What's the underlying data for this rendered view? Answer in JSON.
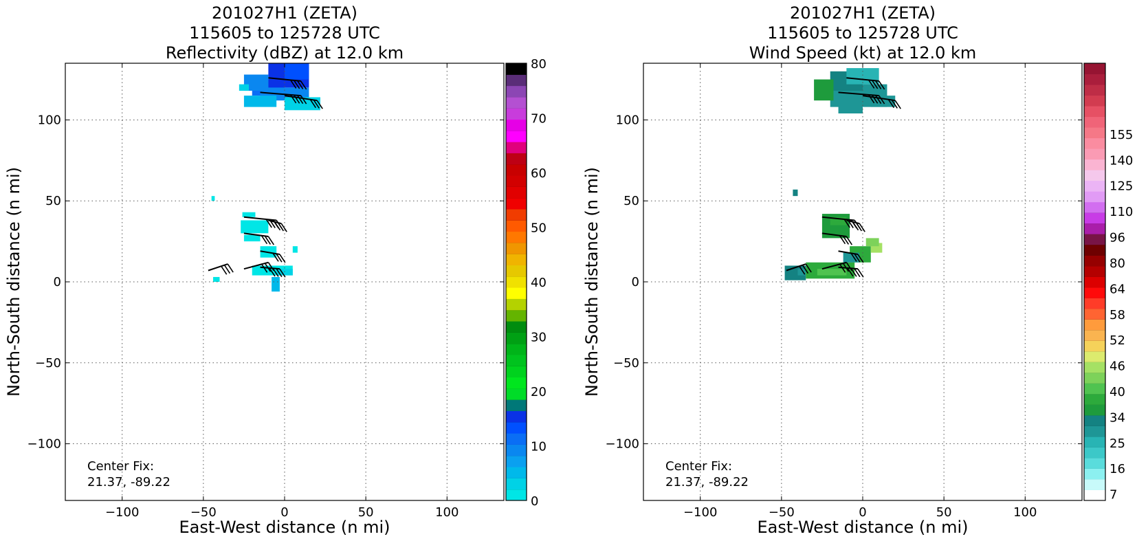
{
  "chart_data": [
    {
      "type": "heatmap",
      "title_lines": [
        "201027H1 (ZETA)",
        "115605 to 125728 UTC",
        "Reflectivity (dBZ) at 12.0 km"
      ],
      "xlabel": "East-West distance (n mi)",
      "ylabel": "North-South distance (n mi)",
      "xlim": [
        -135,
        135
      ],
      "ylim": [
        -135,
        135
      ],
      "xticks": [
        -100,
        -50,
        0,
        50,
        100
      ],
      "yticks": [
        -100,
        -50,
        0,
        50,
        100
      ],
      "xticklabels": [
        "−100",
        "−50",
        "0",
        "50",
        "100"
      ],
      "yticklabels": [
        "−100",
        "−50",
        "0",
        "50",
        "100"
      ],
      "grid": true,
      "annotation_lines": [
        "Center Fix:",
        "21.37, -89.22"
      ],
      "colorbar": {
        "levels": 32,
        "ticks": [
          {
            "label": "0",
            "level": 0
          },
          {
            "label": "10",
            "level": 4
          },
          {
            "label": "20",
            "level": 8
          },
          {
            "label": "30",
            "level": 12
          },
          {
            "label": "40",
            "level": 16
          },
          {
            "label": "50",
            "level": 20
          },
          {
            "label": "60",
            "level": 24
          },
          {
            "label": "70",
            "level": 28
          },
          {
            "label": "80",
            "level": 32
          }
        ],
        "colors": [
          "#00e6e6",
          "#00d2e6",
          "#00b9ea",
          "#0aa0f0",
          "#0a87f0",
          "#0a6ef5",
          "#0050ff",
          "#0a32e6",
          "#007878",
          "#00dc28",
          "#00e61e",
          "#00d21e",
          "#00c31e",
          "#00b419",
          "#00a014",
          "#008c0f",
          "#64b400",
          "#b4d200",
          "#ffff00",
          "#f0e100",
          "#e6c800",
          "#f0b400",
          "#f09600",
          "#ff7800",
          "#ff5a00",
          "#f03c00",
          "#f00000",
          "#e10000",
          "#d20000",
          "#c80000",
          "#be0014",
          "#e1007d",
          "#ff00ff",
          "#e600e6",
          "#c83cdc",
          "#b450d2",
          "#8c46b4",
          "#5a2d78",
          "#000000"
        ]
      },
      "cells": [
        {
          "x": [
            -20,
            0
          ],
          "y": [
            115,
            125
          ],
          "color": "#0a6ef5"
        },
        {
          "x": [
            -15,
            15
          ],
          "y": [
            112,
            120
          ],
          "color": "#0a87f0"
        },
        {
          "x": [
            -10,
            15
          ],
          "y": [
            120,
            135
          ],
          "color": "#0a32e6"
        },
        {
          "x": [
            0,
            15
          ],
          "y": [
            125,
            135
          ],
          "color": "#0050ff"
        },
        {
          "x": [
            -25,
            -10
          ],
          "y": [
            118,
            128
          ],
          "color": "#0a87f0"
        },
        {
          "x": [
            0,
            22
          ],
          "y": [
            106,
            114
          ],
          "color": "#00d2e6"
        },
        {
          "x": [
            -25,
            -5
          ],
          "y": [
            108,
            115
          ],
          "color": "#00b9ea"
        },
        {
          "x": [
            -28,
            -22
          ],
          "y": [
            118,
            122
          ],
          "color": "#00d2e6"
        },
        {
          "x": [
            -27,
            -10
          ],
          "y": [
            30,
            38
          ],
          "color": "#00e6e6"
        },
        {
          "x": [
            -25,
            -15
          ],
          "y": [
            25,
            29
          ],
          "color": "#00e6e6"
        },
        {
          "x": [
            -15,
            -5
          ],
          "y": [
            15,
            22
          ],
          "color": "#00e6e6"
        },
        {
          "x": [
            -20,
            5
          ],
          "y": [
            4,
            10
          ],
          "color": "#00e6e6"
        },
        {
          "x": [
            -5,
            5
          ],
          "y": [
            4,
            8
          ],
          "color": "#00d2e6"
        },
        {
          "x": [
            -8,
            -3
          ],
          "y": [
            -6,
            3
          ],
          "color": "#00b9ea"
        },
        {
          "x": [
            -44,
            -40
          ],
          "y": [
            0,
            3
          ],
          "color": "#00e6e6"
        },
        {
          "x": [
            -45,
            -43
          ],
          "y": [
            50,
            53
          ],
          "color": "#00e6e6"
        },
        {
          "x": [
            5,
            8
          ],
          "y": [
            18,
            22
          ],
          "color": "#00e6e6"
        },
        {
          "x": [
            -26,
            -18
          ],
          "y": [
            40,
            43
          ],
          "color": "#00e6e6"
        }
      ],
      "barbs": [
        {
          "x": [
            -25,
            -5
          ],
          "y": [
            40,
            38
          ],
          "flags": 4
        },
        {
          "x": [
            -10,
            -2
          ],
          "y": [
            38,
            36
          ],
          "flags": 3
        },
        {
          "x": [
            -25,
            -10
          ],
          "y": [
            30,
            28
          ],
          "flags": 3
        },
        {
          "x": [
            -15,
            -3
          ],
          "y": [
            19,
            17
          ],
          "flags": 3
        },
        {
          "x": [
            -47,
            -35
          ],
          "y": [
            7,
            11
          ],
          "flags": 3
        },
        {
          "x": [
            -25,
            -10
          ],
          "y": [
            8,
            12
          ],
          "flags": 3
        },
        {
          "x": [
            -15,
            -3
          ],
          "y": [
            9,
            8
          ],
          "flags": 4
        },
        {
          "x": [
            -10,
            10
          ],
          "y": [
            126,
            124
          ],
          "flags": 4
        },
        {
          "x": [
            -15,
            10
          ],
          "y": [
            117,
            115
          ],
          "flags": 4
        },
        {
          "x": [
            0,
            20
          ],
          "y": [
            115,
            112
          ],
          "flags": 3
        }
      ]
    },
    {
      "type": "heatmap",
      "title_lines": [
        "201027H1 (ZETA)",
        "115605 to 125728 UTC",
        "Wind Speed (kt) at 12.0 km"
      ],
      "xlabel": "East-West distance (n mi)",
      "ylabel": "North-South distance (n mi)",
      "xlim": [
        -135,
        135
      ],
      "ylim": [
        -135,
        135
      ],
      "xticks": [
        -100,
        -50,
        0,
        50,
        100
      ],
      "yticks": [
        -100,
        -50,
        0,
        50,
        100
      ],
      "xticklabels": [
        "−100",
        "−50",
        "0",
        "50",
        "100"
      ],
      "yticklabels": [
        "−100",
        "−50",
        "0",
        "50",
        "100"
      ],
      "grid": true,
      "annotation_lines": [
        "Center Fix:",
        "21.37, -89.22"
      ],
      "colorbar": {
        "levels": 34,
        "ticks": [
          {
            "label": "7",
            "level": 0.5
          },
          {
            "label": "16",
            "level": 2.5
          },
          {
            "label": "25",
            "level": 4.5
          },
          {
            "label": "34",
            "level": 6.5
          },
          {
            "label": "40",
            "level": 8.5
          },
          {
            "label": "46",
            "level": 10.5
          },
          {
            "label": "52",
            "level": 12.5
          },
          {
            "label": "58",
            "level": 14.5
          },
          {
            "label": "64",
            "level": 16.5
          },
          {
            "label": "80",
            "level": 18.5
          },
          {
            "label": "96",
            "level": 20.5
          },
          {
            "label": "110",
            "level": 22.5
          },
          {
            "label": "125",
            "level": 24.5
          },
          {
            "label": "140",
            "level": 26.5
          },
          {
            "label": "155",
            "level": 28.5
          }
        ],
        "colors": [
          "#ffffff",
          "#c8fafa",
          "#8cf0f0",
          "#5adcdc",
          "#3cc8c8",
          "#28b4b4",
          "#1e9696",
          "#148282",
          "#1e9b3c",
          "#2daa3c",
          "#50c350",
          "#7dd25a",
          "#a5e164",
          "#dceb6e",
          "#f5d25a",
          "#fab450",
          "#ff9b3c",
          "#ff6432",
          "#ff3c28",
          "#ff0a0a",
          "#dc0000",
          "#b40000",
          "#960000",
          "#6e0000",
          "#781446",
          "#aa1eaa",
          "#c83ce6",
          "#d26ef0",
          "#e19bf5",
          "#ebb4f5",
          "#f5c8ec",
          "#fab4d2",
          "#fa9bb4",
          "#fa8ca0",
          "#f57887",
          "#f06478",
          "#e65064",
          "#d23c50",
          "#be2d46",
          "#aa1e3c",
          "#961432"
        ]
      },
      "cells": [
        {
          "x": [
            -20,
            15
          ],
          "y": [
            108,
            122
          ],
          "color": "#1e9696"
        },
        {
          "x": [
            -20,
            0
          ],
          "y": [
            118,
            130
          ],
          "color": "#148282"
        },
        {
          "x": [
            -30,
            -18
          ],
          "y": [
            112,
            125
          ],
          "color": "#1e9b3c"
        },
        {
          "x": [
            -10,
            10
          ],
          "y": [
            122,
            132
          ],
          "color": "#28b4b4"
        },
        {
          "x": [
            5,
            20
          ],
          "y": [
            108,
            115
          ],
          "color": "#1e9696"
        },
        {
          "x": [
            -15,
            0
          ],
          "y": [
            104,
            110
          ],
          "color": "#1e9696"
        },
        {
          "x": [
            -25,
            -8
          ],
          "y": [
            27,
            42
          ],
          "color": "#1e9b3c"
        },
        {
          "x": [
            -20,
            -10
          ],
          "y": [
            35,
            40
          ],
          "color": "#2daa3c"
        },
        {
          "x": [
            -48,
            -35
          ],
          "y": [
            1,
            10
          ],
          "color": "#148282"
        },
        {
          "x": [
            -40,
            -30
          ],
          "y": [
            4,
            8
          ],
          "color": "#1e9696"
        },
        {
          "x": [
            -35,
            -5
          ],
          "y": [
            2,
            12
          ],
          "color": "#2daa3c"
        },
        {
          "x": [
            -28,
            -10
          ],
          "y": [
            4,
            8
          ],
          "color": "#50c350"
        },
        {
          "x": [
            -8,
            5
          ],
          "y": [
            12,
            22
          ],
          "color": "#2daa3c"
        },
        {
          "x": [
            5,
            12
          ],
          "y": [
            18,
            24
          ],
          "color": "#a5e164"
        },
        {
          "x": [
            2,
            10
          ],
          "y": [
            22,
            27
          ],
          "color": "#7dd25a"
        },
        {
          "x": [
            -43,
            -40
          ],
          "y": [
            53,
            57
          ],
          "color": "#148282"
        },
        {
          "x": [
            -12,
            -2
          ],
          "y": [
            12,
            18
          ],
          "color": "#1e9696"
        }
      ],
      "barbs": [
        {
          "x": [
            -25,
            -5
          ],
          "y": [
            40,
            38
          ],
          "flags": 4
        },
        {
          "x": [
            -10,
            -2
          ],
          "y": [
            38,
            36
          ],
          "flags": 3
        },
        {
          "x": [
            -25,
            -10
          ],
          "y": [
            30,
            28
          ],
          "flags": 3
        },
        {
          "x": [
            -15,
            -3
          ],
          "y": [
            19,
            17
          ],
          "flags": 3
        },
        {
          "x": [
            -47,
            -35
          ],
          "y": [
            7,
            11
          ],
          "flags": 3
        },
        {
          "x": [
            -25,
            -10
          ],
          "y": [
            8,
            12
          ],
          "flags": 3
        },
        {
          "x": [
            -15,
            -3
          ],
          "y": [
            9,
            8
          ],
          "flags": 4
        },
        {
          "x": [
            -10,
            10
          ],
          "y": [
            126,
            124
          ],
          "flags": 4
        },
        {
          "x": [
            -15,
            10
          ],
          "y": [
            117,
            115
          ],
          "flags": 4
        },
        {
          "x": [
            0,
            20
          ],
          "y": [
            115,
            112
          ],
          "flags": 3
        }
      ]
    }
  ]
}
